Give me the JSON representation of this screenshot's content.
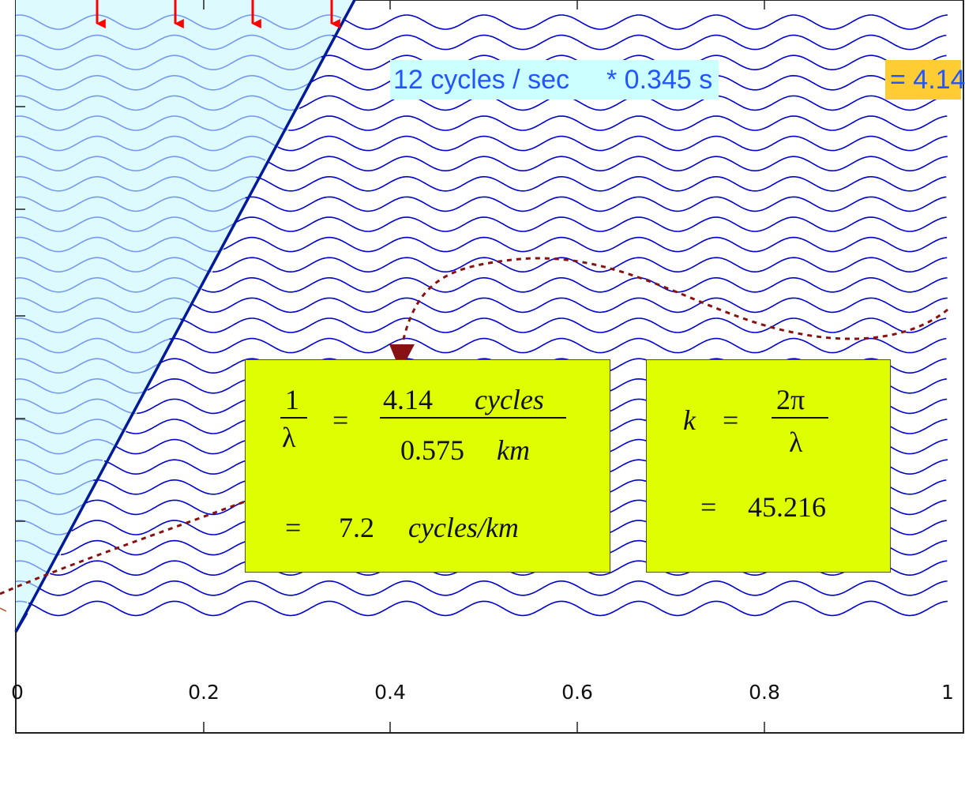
{
  "axes": {
    "x_tick_labels": [
      "0",
      "0.2",
      "0.4",
      "0.6",
      "0.8",
      "1"
    ]
  },
  "banner": {
    "rate": "12 cycles / sec",
    "time": "* 0.345 s",
    "result": "= 4.14"
  },
  "formula_wavelength": {
    "lhs_num": "1",
    "lhs_den": "λ",
    "equals": "=",
    "rhs_num_value": "4.14",
    "rhs_num_unit": "cycles",
    "rhs_den_value": "0.575",
    "rhs_den_unit": "km",
    "result_equals": "=",
    "result_value": "7.2",
    "result_unit": "cycles/km"
  },
  "formula_wavenumber": {
    "lhs": "k",
    "equals": "=",
    "rhs_num": "2π",
    "rhs_den": "λ",
    "result_equals": "=",
    "result_value": "45.216"
  },
  "colors": {
    "wave": "#0000cc",
    "wave_shaded": "#7799ee",
    "shade": "#dcfaff",
    "front_line": "#001a99",
    "arrow": "#ff0000",
    "dashed_curve": "#881111",
    "box_fill": "#ddff00",
    "banner_cyan": "#ccffff",
    "banner_result": "#ffcc33"
  }
}
